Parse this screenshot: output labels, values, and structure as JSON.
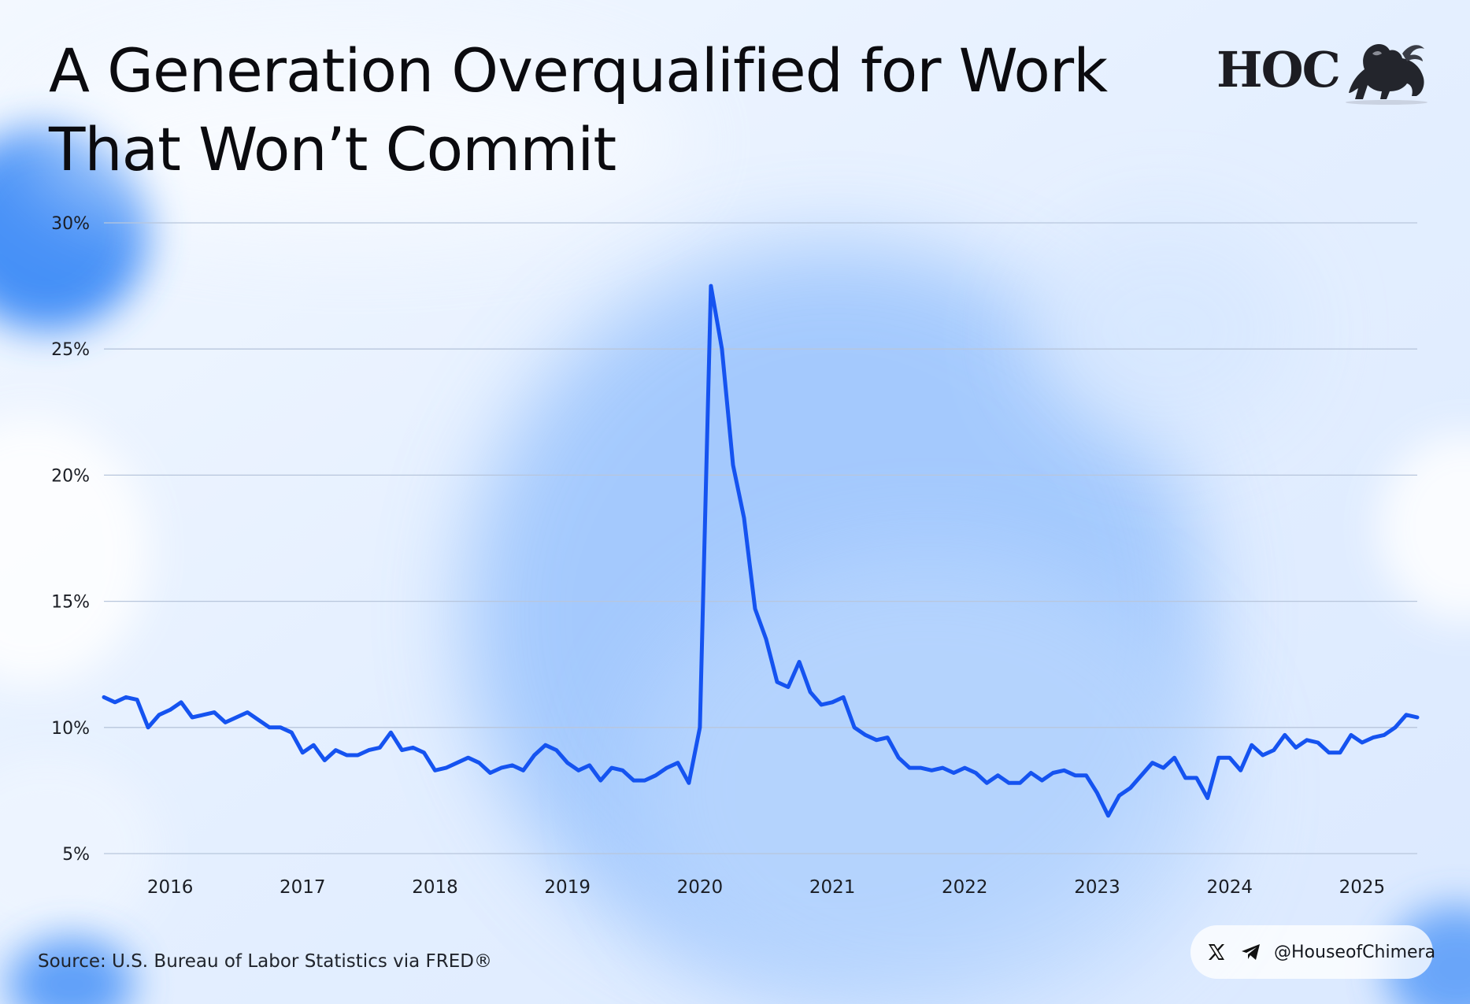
{
  "page": {
    "title_lines": [
      "A Generation Overqualified for Work",
      "That Won’t Commit"
    ],
    "logo_text": "HOC",
    "logo_icon": "lion-emblem-icon",
    "source": "Source: U.S. Bureau of Labor Statistics via FRED®",
    "social_handle": "@HouseofChimera",
    "social_icons": [
      "x-logo-icon",
      "telegram-icon"
    ]
  },
  "chart_data": {
    "type": "line",
    "title": "A Generation Overqualified for Work That Won’t Commit",
    "xlabel": "",
    "ylabel": "",
    "x_ticks": [
      "2016",
      "2017",
      "2018",
      "2019",
      "2020",
      "2021",
      "2022",
      "2023",
      "2024",
      "2025"
    ],
    "y_ticks": [
      "5%",
      "10%",
      "15%",
      "20%",
      "25%",
      "30%"
    ],
    "y_tick_values": [
      5,
      10,
      15,
      20,
      25,
      30
    ],
    "ylim": [
      5,
      30
    ],
    "xlim": [
      "2015-10",
      "2025-09"
    ],
    "grid": true,
    "legend": "none",
    "line_color": "#1553f0",
    "series": [
      {
        "values": [
          {
            "x": "2015-10",
            "y": 11.2
          },
          {
            "x": "2015-11",
            "y": 11.0
          },
          {
            "x": "2015-12",
            "y": 11.2
          },
          {
            "x": "2016-01",
            "y": 11.1
          },
          {
            "x": "2016-02",
            "y": 10.0
          },
          {
            "x": "2016-03",
            "y": 10.5
          },
          {
            "x": "2016-04",
            "y": 10.7
          },
          {
            "x": "2016-05",
            "y": 11.0
          },
          {
            "x": "2016-06",
            "y": 10.4
          },
          {
            "x": "2016-07",
            "y": 10.5
          },
          {
            "x": "2016-08",
            "y": 10.6
          },
          {
            "x": "2016-09",
            "y": 10.2
          },
          {
            "x": "2016-10",
            "y": 10.4
          },
          {
            "x": "2016-11",
            "y": 10.6
          },
          {
            "x": "2016-12",
            "y": 10.3
          },
          {
            "x": "2017-01",
            "y": 10.0
          },
          {
            "x": "2017-02",
            "y": 10.0
          },
          {
            "x": "2017-03",
            "y": 9.8
          },
          {
            "x": "2017-04",
            "y": 9.0
          },
          {
            "x": "2017-05",
            "y": 9.3
          },
          {
            "x": "2017-06",
            "y": 8.7
          },
          {
            "x": "2017-07",
            "y": 9.1
          },
          {
            "x": "2017-08",
            "y": 8.9
          },
          {
            "x": "2017-09",
            "y": 8.9
          },
          {
            "x": "2017-10",
            "y": 9.1
          },
          {
            "x": "2017-11",
            "y": 9.2
          },
          {
            "x": "2017-12",
            "y": 9.8
          },
          {
            "x": "2018-01",
            "y": 9.1
          },
          {
            "x": "2018-02",
            "y": 9.2
          },
          {
            "x": "2018-03",
            "y": 9.0
          },
          {
            "x": "2018-04",
            "y": 8.3
          },
          {
            "x": "2018-05",
            "y": 8.4
          },
          {
            "x": "2018-06",
            "y": 8.6
          },
          {
            "x": "2018-07",
            "y": 8.8
          },
          {
            "x": "2018-08",
            "y": 8.6
          },
          {
            "x": "2018-09",
            "y": 8.2
          },
          {
            "x": "2018-10",
            "y": 8.4
          },
          {
            "x": "2018-11",
            "y": 8.5
          },
          {
            "x": "2018-12",
            "y": 8.3
          },
          {
            "x": "2019-01",
            "y": 8.9
          },
          {
            "x": "2019-02",
            "y": 9.3
          },
          {
            "x": "2019-03",
            "y": 9.1
          },
          {
            "x": "2019-04",
            "y": 8.6
          },
          {
            "x": "2019-05",
            "y": 8.3
          },
          {
            "x": "2019-06",
            "y": 8.5
          },
          {
            "x": "2019-07",
            "y": 7.9
          },
          {
            "x": "2019-08",
            "y": 8.4
          },
          {
            "x": "2019-09",
            "y": 8.3
          },
          {
            "x": "2019-10",
            "y": 7.9
          },
          {
            "x": "2019-11",
            "y": 7.9
          },
          {
            "x": "2019-12",
            "y": 8.1
          },
          {
            "x": "2020-01",
            "y": 8.4
          },
          {
            "x": "2020-02",
            "y": 8.6
          },
          {
            "x": "2020-03",
            "y": 7.8
          },
          {
            "x": "2020-04",
            "y": 10.0
          },
          {
            "x": "2020-05",
            "y": 27.5
          },
          {
            "x": "2020-06",
            "y": 25.0
          },
          {
            "x": "2020-07",
            "y": 20.4
          },
          {
            "x": "2020-08",
            "y": 18.3
          },
          {
            "x": "2020-09",
            "y": 14.7
          },
          {
            "x": "2020-10",
            "y": 13.5
          },
          {
            "x": "2020-11",
            "y": 11.8
          },
          {
            "x": "2020-12",
            "y": 11.6
          },
          {
            "x": "2021-01",
            "y": 12.6
          },
          {
            "x": "2021-02",
            "y": 11.4
          },
          {
            "x": "2021-03",
            "y": 10.9
          },
          {
            "x": "2021-04",
            "y": 11.0
          },
          {
            "x": "2021-05",
            "y": 11.2
          },
          {
            "x": "2021-06",
            "y": 10.0
          },
          {
            "x": "2021-07",
            "y": 9.7
          },
          {
            "x": "2021-08",
            "y": 9.5
          },
          {
            "x": "2021-09",
            "y": 9.6
          },
          {
            "x": "2021-10",
            "y": 8.8
          },
          {
            "x": "2021-11",
            "y": 8.4
          },
          {
            "x": "2021-12",
            "y": 8.4
          },
          {
            "x": "2022-01",
            "y": 8.3
          },
          {
            "x": "2022-02",
            "y": 8.4
          },
          {
            "x": "2022-03",
            "y": 8.2
          },
          {
            "x": "2022-04",
            "y": 8.4
          },
          {
            "x": "2022-05",
            "y": 8.2
          },
          {
            "x": "2022-06",
            "y": 7.8
          },
          {
            "x": "2022-07",
            "y": 8.1
          },
          {
            "x": "2022-08",
            "y": 7.8
          },
          {
            "x": "2022-09",
            "y": 7.8
          },
          {
            "x": "2022-10",
            "y": 8.2
          },
          {
            "x": "2022-11",
            "y": 7.9
          },
          {
            "x": "2022-12",
            "y": 8.2
          },
          {
            "x": "2023-01",
            "y": 8.3
          },
          {
            "x": "2023-02",
            "y": 8.1
          },
          {
            "x": "2023-03",
            "y": 8.1
          },
          {
            "x": "2023-04",
            "y": 7.4
          },
          {
            "x": "2023-05",
            "y": 6.5
          },
          {
            "x": "2023-06",
            "y": 7.3
          },
          {
            "x": "2023-07",
            "y": 7.6
          },
          {
            "x": "2023-08",
            "y": 8.1
          },
          {
            "x": "2023-09",
            "y": 8.6
          },
          {
            "x": "2023-10",
            "y": 8.4
          },
          {
            "x": "2023-11",
            "y": 8.8
          },
          {
            "x": "2023-12",
            "y": 8.0
          },
          {
            "x": "2024-01",
            "y": 8.0
          },
          {
            "x": "2024-02",
            "y": 7.2
          },
          {
            "x": "2024-03",
            "y": 8.8
          },
          {
            "x": "2024-04",
            "y": 8.8
          },
          {
            "x": "2024-05",
            "y": 8.3
          },
          {
            "x": "2024-06",
            "y": 9.3
          },
          {
            "x": "2024-07",
            "y": 8.9
          },
          {
            "x": "2024-08",
            "y": 9.1
          },
          {
            "x": "2024-09",
            "y": 9.7
          },
          {
            "x": "2024-10",
            "y": 9.2
          },
          {
            "x": "2024-11",
            "y": 9.5
          },
          {
            "x": "2024-12",
            "y": 9.4
          },
          {
            "x": "2025-01",
            "y": 9.0
          },
          {
            "x": "2025-02",
            "y": 9.0
          },
          {
            "x": "2025-03",
            "y": 9.7
          },
          {
            "x": "2025-04",
            "y": 9.4
          },
          {
            "x": "2025-05",
            "y": 9.6
          },
          {
            "x": "2025-06",
            "y": 9.7
          },
          {
            "x": "2025-07",
            "y": 10.0
          },
          {
            "x": "2025-08",
            "y": 10.5
          },
          {
            "x": "2025-09",
            "y": 10.4
          }
        ]
      }
    ]
  }
}
